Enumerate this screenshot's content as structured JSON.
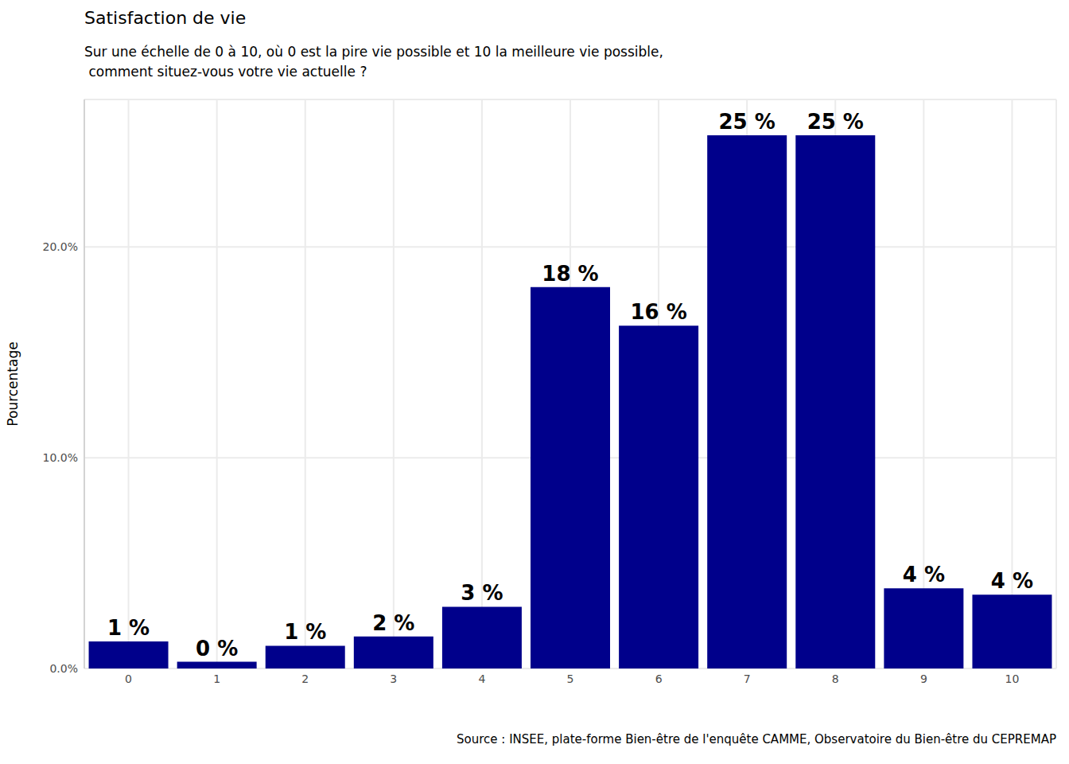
{
  "chart_data": {
    "type": "bar",
    "title": "Satisfaction de vie",
    "subtitle": "Sur une échelle de 0 à 10, où 0 est la pire vie possible et 10 la meilleure vie possible,\n comment situez-vous votre vie actuelle ?",
    "y_label": "Pourcentage",
    "source": "Source : INSEE, plate-forme Bien-être de l'enquête CAMME, Observatoire du Bien-être du CEPREMAP",
    "categories": [
      "0",
      "1",
      "2",
      "3",
      "4",
      "5",
      "6",
      "7",
      "8",
      "9",
      "10"
    ],
    "values": [
      1.28,
      0.32,
      1.08,
      1.52,
      2.93,
      18.1,
      16.27,
      25.3,
      25.3,
      3.8,
      3.5
    ],
    "value_labels": [
      "1 %",
      "0 %",
      "1 %",
      "2 %",
      "3 %",
      "18 %",
      "16 %",
      "25 %",
      "25 %",
      "4 %",
      "4 %"
    ],
    "data_labels": true,
    "color": "#00008b",
    "ylim": [
      0,
      27
    ],
    "yticks": [
      {
        "value": 0,
        "label": "0.0%"
      },
      {
        "value": 10,
        "label": "10.0%"
      },
      {
        "value": 20,
        "label": "20.0%"
      }
    ],
    "grid": true
  }
}
